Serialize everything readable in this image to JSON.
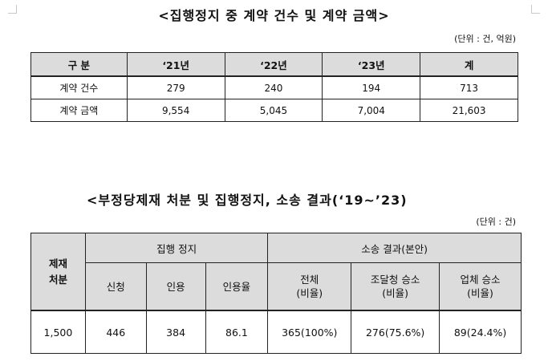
{
  "table1": {
    "title": "<집행정지 중 계약 건수 및 계약 금액>",
    "unit": "(단위 : 건, 억원)",
    "headers": [
      "구 분",
      "‘21년",
      "‘22년",
      "‘23년",
      "계"
    ],
    "rows": [
      [
        "계약 건수",
        "279",
        "240",
        "194",
        "713"
      ],
      [
        "계약 금액",
        "9,554",
        "5,045",
        "7,004",
        "21,603"
      ]
    ]
  },
  "table2": {
    "title": "<부정당제재 처분 및 집행정지, 소송 결과(‘19~’23)",
    "unit": "(단위 : 건)",
    "col_sanction": "제재\n처분",
    "group_suspension": "집행 정지",
    "group_lawsuit": "소송 결과(본안)",
    "sub_headers": [
      "신청",
      "인용",
      "인용율",
      "전체\n(비율)",
      "조달청 승소\n(비율)",
      "업체 승소\n(비율)"
    ],
    "row": [
      "1,500",
      "446",
      "384",
      "86.1",
      "365(100%)",
      "276(75.6%)",
      "89(24.4%)"
    ]
  }
}
